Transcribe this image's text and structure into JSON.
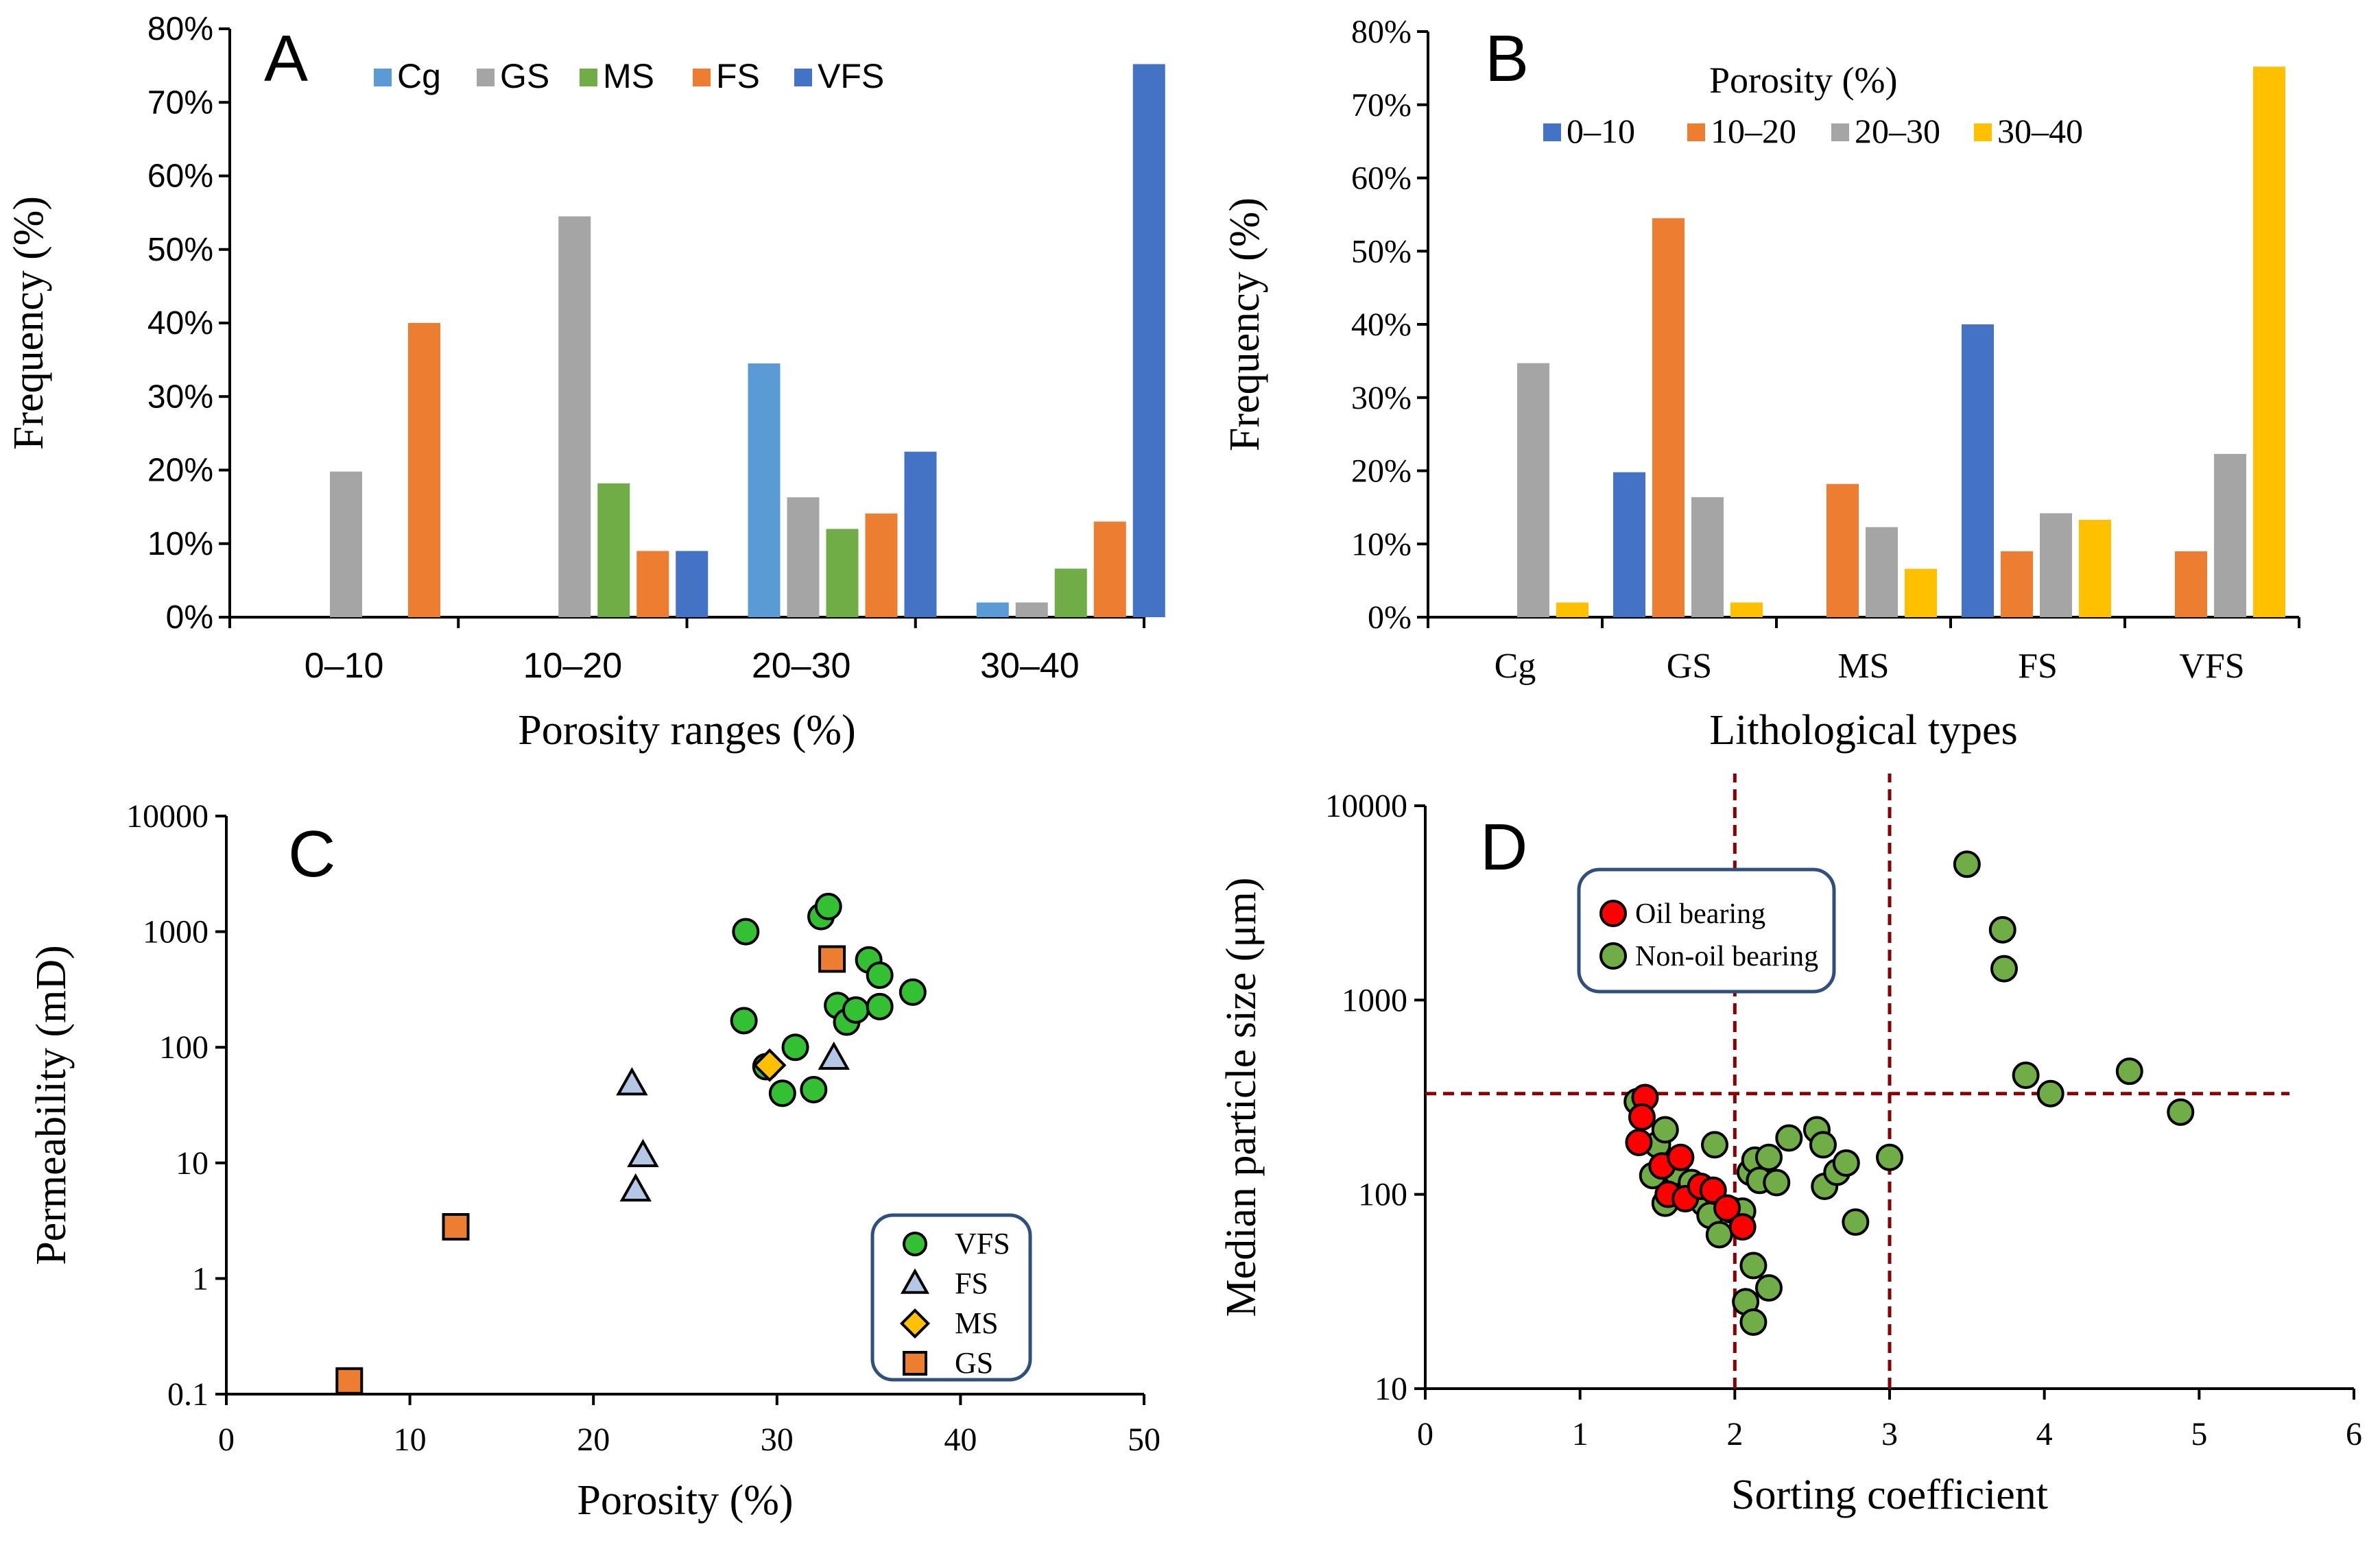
{
  "chart_data": [
    {
      "panel": "A",
      "type": "bar",
      "ylabel": "Frequency (%)",
      "xlabel": "Porosity ranges (%)",
      "categories": [
        "0–10",
        "10–20",
        "20–30",
        "30–40"
      ],
      "ylim": [
        0,
        80
      ],
      "yticks": [
        "0%",
        "10%",
        "20%",
        "30%",
        "40%",
        "50%",
        "60%",
        "70%",
        "80%"
      ],
      "legend_position": "top",
      "series": [
        {
          "name": "Cg",
          "color": "#5b9bd5",
          "values": [
            0,
            0,
            34.5,
            2
          ]
        },
        {
          "name": "GS",
          "color": "#a5a5a5",
          "values": [
            19.8,
            54.5,
            16.3,
            2
          ]
        },
        {
          "name": "MS",
          "color": "#70ad47",
          "values": [
            0,
            18.2,
            12,
            6.6
          ]
        },
        {
          "name": "FS",
          "color": "#ed7d31",
          "values": [
            40,
            9,
            14.1,
            13
          ]
        },
        {
          "name": "VFS",
          "color": "#4472c4",
          "values": [
            0,
            9,
            22.5,
            75.2
          ]
        }
      ]
    },
    {
      "panel": "B",
      "type": "bar",
      "ylabel": "Frequency (%)",
      "xlabel": "Lithological types",
      "legend_title": "Porosity (%)",
      "categories": [
        "Cg",
        "GS",
        "MS",
        "FS",
        "VFS"
      ],
      "ylim": [
        0,
        80
      ],
      "yticks": [
        "0%",
        "10%",
        "20%",
        "30%",
        "40%",
        "50%",
        "60%",
        "70%",
        "80%"
      ],
      "legend_position": "top",
      "series": [
        {
          "name": "0–10",
          "color": "#4472c4",
          "values": [
            0,
            19.8,
            0,
            40,
            0
          ]
        },
        {
          "name": "10–20",
          "color": "#ed7d31",
          "values": [
            0,
            54.5,
            18.2,
            9,
            9
          ]
        },
        {
          "name": "20–30",
          "color": "#a5a5a5",
          "values": [
            34.7,
            16.4,
            12.3,
            14.2,
            22.3
          ]
        },
        {
          "name": "30–40",
          "color": "#ffc000",
          "values": [
            2,
            2,
            6.6,
            13.3,
            75.2
          ]
        }
      ]
    },
    {
      "panel": "C",
      "type": "scatter",
      "xlabel": "Porosity (%)",
      "ylabel": "Permeability (mD)",
      "xlim": [
        0,
        50
      ],
      "xticks": [
        "0",
        "10",
        "20",
        "30",
        "40",
        "50"
      ],
      "ylim": [
        0.1,
        10000
      ],
      "yscale": "log",
      "yticks": [
        "0.1",
        "1",
        "10",
        "100",
        "1000",
        "10000"
      ],
      "legend_position": "bottom-right",
      "series": [
        {
          "name": "VFS",
          "marker": "circle",
          "color": "#33c033",
          "points": [
            [
              28.3,
              1000
            ],
            [
              28.2,
              170
            ],
            [
              29.4,
              68
            ],
            [
              30.3,
              40
            ],
            [
              31,
              100
            ],
            [
              32,
              43
            ],
            [
              32.4,
              1350
            ],
            [
              32.8,
              1650
            ],
            [
              33.3,
              230
            ],
            [
              33.8,
              165
            ],
            [
              34.3,
              210
            ],
            [
              35,
              570
            ],
            [
              35.6,
              420
            ],
            [
              35.6,
              225
            ],
            [
              37.4,
              300
            ]
          ]
        },
        {
          "name": "FS",
          "marker": "triangle",
          "color": "#b4c7e7",
          "points": [
            [
              22.1,
              48
            ],
            [
              22.7,
              11.5
            ],
            [
              22.3,
              5.8
            ],
            [
              33.1,
              80
            ]
          ]
        },
        {
          "name": "MS",
          "marker": "diamond",
          "color": "#ffc000",
          "points": [
            [
              29.6,
              70
            ]
          ]
        },
        {
          "name": "GS",
          "marker": "square",
          "color": "#ed7d31",
          "points": [
            [
              6.7,
              0.13
            ],
            [
              12.5,
              2.8
            ],
            [
              33,
              580
            ]
          ]
        }
      ]
    },
    {
      "panel": "D",
      "type": "scatter",
      "xlabel": "Sorting coefficient",
      "ylabel": "Median particle size (μm)",
      "xlim": [
        0,
        6
      ],
      "xticks": [
        "0",
        "1",
        "2",
        "3",
        "4",
        "5",
        "6"
      ],
      "ylim": [
        10,
        10000
      ],
      "yscale": "log",
      "yticks": [
        "10",
        "100",
        "1000",
        "10000"
      ],
      "reference_lines": {
        "vertical": [
          2,
          3
        ],
        "horizontal": 330
      },
      "legend_position": "top-left",
      "series": [
        {
          "name": "Non-oil bearing",
          "marker": "circle",
          "color": "#70ad47",
          "points": [
            [
              1.37,
              300
            ],
            [
              1.5,
              180
            ],
            [
              1.55,
              215
            ],
            [
              1.47,
              125
            ],
            [
              1.55,
              90
            ],
            [
              1.62,
              130
            ],
            [
              1.72,
              115
            ],
            [
              1.8,
              90
            ],
            [
              1.84,
              78
            ],
            [
              1.9,
              62
            ],
            [
              1.98,
              83
            ],
            [
              1.87,
              180
            ],
            [
              2.05,
              82
            ],
            [
              2.1,
              130
            ],
            [
              2.13,
              150
            ],
            [
              2.16,
              118
            ],
            [
              2.22,
              155
            ],
            [
              2.27,
              115
            ],
            [
              2.35,
              195
            ],
            [
              2.53,
              215
            ],
            [
              2.57,
              180
            ],
            [
              2.58,
              110
            ],
            [
              2.66,
              130
            ],
            [
              2.72,
              145
            ],
            [
              2.78,
              72
            ],
            [
              3.0,
              155
            ],
            [
              2.07,
              28
            ],
            [
              2.12,
              22
            ],
            [
              2.12,
              43
            ],
            [
              2.22,
              33
            ],
            [
              3.5,
              5000
            ],
            [
              3.73,
              2300
            ],
            [
              3.74,
              1450
            ],
            [
              3.88,
              410
            ],
            [
              4.04,
              330
            ],
            [
              4.55,
              430
            ],
            [
              4.88,
              265
            ]
          ]
        },
        {
          "name": "Oil bearing",
          "marker": "circle",
          "color": "#ff0000",
          "points": [
            [
              1.42,
              315
            ],
            [
              1.4,
              250
            ],
            [
              1.38,
              185
            ],
            [
              1.53,
              140
            ],
            [
              1.65,
              155
            ],
            [
              1.57,
              100
            ],
            [
              1.68,
              95
            ],
            [
              1.78,
              110
            ],
            [
              1.86,
              105
            ],
            [
              1.95,
              85
            ],
            [
              2.05,
              68
            ]
          ]
        }
      ]
    }
  ]
}
